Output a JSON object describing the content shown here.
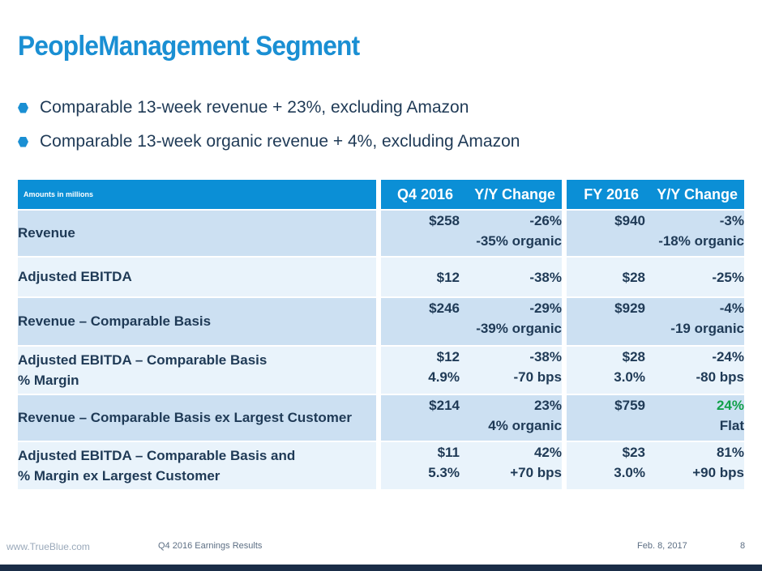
{
  "title": "PeopleManagement Segment",
  "bullets": [
    "Comparable 13-week revenue + 23%, excluding Amazon",
    "Comparable 13-week organic revenue + 4%, excluding Amazon"
  ],
  "table": {
    "header": {
      "label": "Amounts in millions",
      "q4": "Q4 2016",
      "q4_change": "Y/Y Change",
      "fy": "FY 2016",
      "fy_change": "Y/Y Change"
    },
    "rows": [
      {
        "label1": "Revenue",
        "label2": "",
        "q4_1": "$258",
        "q4_2": "",
        "q4c_1": "-26%",
        "q4c_2": "-35% organic",
        "fy_1": "$940",
        "fy_2": "",
        "fyc_1": "-3%",
        "fyc_2": "-18% organic"
      },
      {
        "label1": "Adjusted EBITDA",
        "label2": "",
        "q4_1": "$12",
        "q4_2": "",
        "q4c_1": "-38%",
        "q4c_2": "",
        "fy_1": "$28",
        "fy_2": "",
        "fyc_1": "-25%",
        "fyc_2": ""
      },
      {
        "label1": "Revenue – Comparable Basis",
        "label2": "",
        "q4_1": "$246",
        "q4_2": "",
        "q4c_1": "-29%",
        "q4c_2": "-39% organic",
        "fy_1": "$929",
        "fy_2": "",
        "fyc_1": "-4%",
        "fyc_2": "-19 organic"
      },
      {
        "label1": "Adjusted EBITDA  – Comparable Basis",
        "label2": "% Margin",
        "q4_1": "$12",
        "q4_2": "4.9%",
        "q4c_1": "-38%",
        "q4c_2": "-70 bps",
        "fy_1": "$28",
        "fy_2": "3.0%",
        "fyc_1": "-24%",
        "fyc_2": "-80 bps"
      },
      {
        "label1": "Revenue – Comparable Basis ex Largest Customer",
        "label2": "",
        "q4_1": "$214",
        "q4_2": "",
        "q4c_1": "23%",
        "q4c_2": "4% organic",
        "fy_1": "$759",
        "fy_2": "",
        "fyc_1": "24%",
        "fyc_2": "Flat"
      },
      {
        "label1": "Adjusted EBITDA  – Comparable Basis and",
        "label2": "% Margin ex Largest Customer",
        "q4_1": "$11",
        "q4_2": "5.3%",
        "q4c_1": "42%",
        "q4c_2": "+70 bps",
        "fy_1": "$23",
        "fy_2": "3.0%",
        "fyc_1": "81%",
        "fyc_2": "+90 bps"
      }
    ]
  },
  "colors": {
    "title": "#1a8fd3",
    "header_bg": "#0b8fd6",
    "row_dark": "#cce0f2",
    "row_light": "#e9f3fb",
    "negative": "#a3134b",
    "positive": "#12a14a",
    "footer_bar": "#1a2d47"
  },
  "footer": {
    "url": "www.TrueBlue.com",
    "center": "Q4 2016 Earnings Results",
    "date": "Feb. 8, 2017",
    "page": "8"
  }
}
